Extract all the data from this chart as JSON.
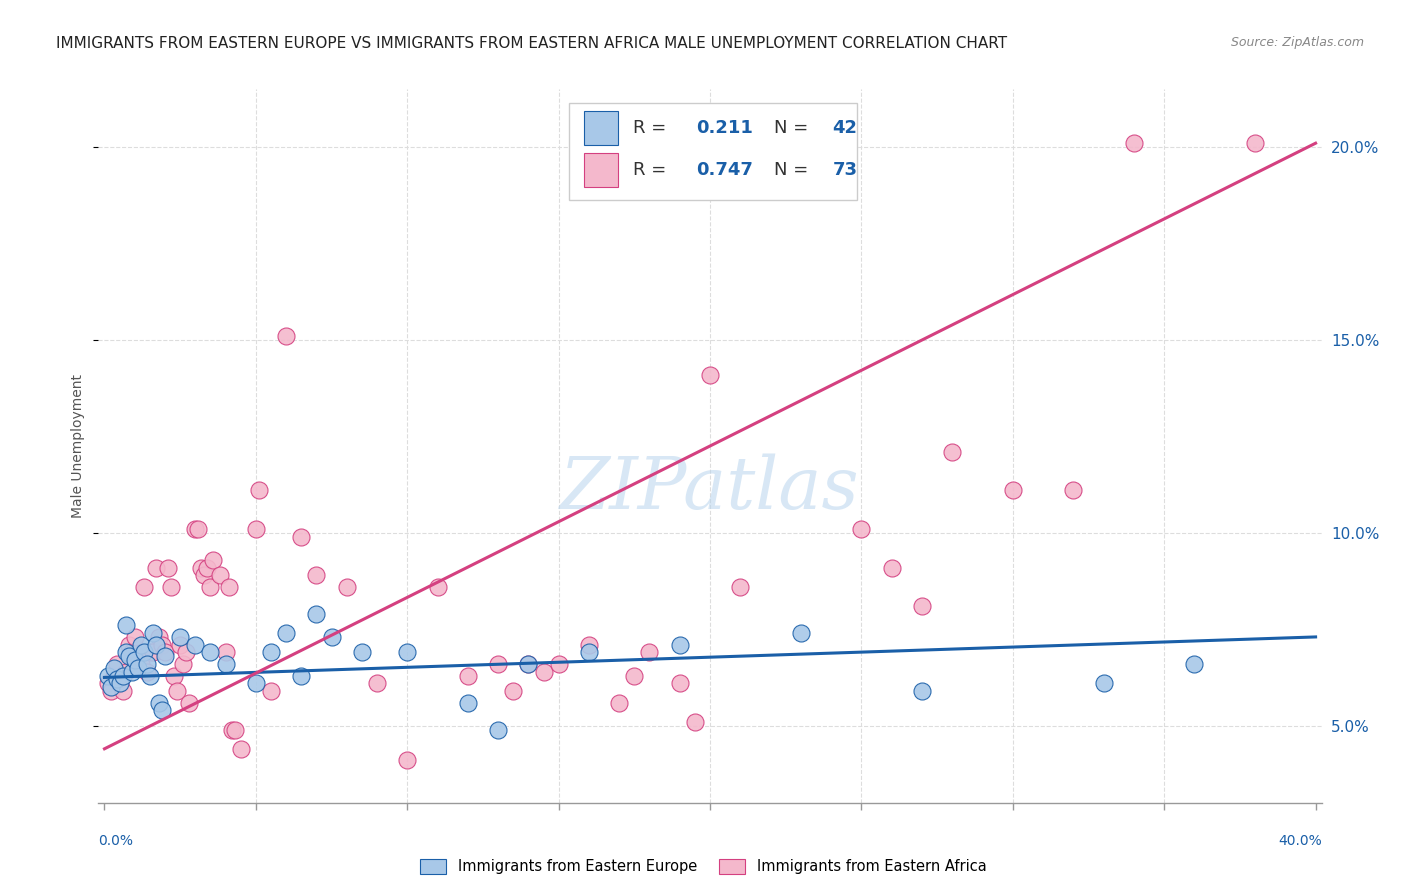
{
  "title": "IMMIGRANTS FROM EASTERN EUROPE VS IMMIGRANTS FROM EASTERN AFRICA MALE UNEMPLOYMENT CORRELATION CHART",
  "source": "Source: ZipAtlas.com",
  "ylabel": "Male Unemployment",
  "ylabel_right_ticks": [
    "5.0%",
    "10.0%",
    "15.0%",
    "20.0%"
  ],
  "ylabel_right_vals": [
    0.05,
    0.1,
    0.15,
    0.2
  ],
  "watermark": "ZIPatlas",
  "legend_blue_r": "0.211",
  "legend_blue_n": "42",
  "legend_pink_r": "0.747",
  "legend_pink_n": "73",
  "blue_color": "#a8c8e8",
  "pink_color": "#f4b8cc",
  "blue_line_color": "#1a5fa8",
  "pink_line_color": "#d44080",
  "blue_scatter": [
    [
      0.001,
      0.063
    ],
    [
      0.002,
      0.06
    ],
    [
      0.003,
      0.065
    ],
    [
      0.004,
      0.062
    ],
    [
      0.005,
      0.061
    ],
    [
      0.006,
      0.063
    ],
    [
      0.007,
      0.069
    ],
    [
      0.007,
      0.076
    ],
    [
      0.008,
      0.068
    ],
    [
      0.009,
      0.064
    ],
    [
      0.01,
      0.067
    ],
    [
      0.011,
      0.065
    ],
    [
      0.012,
      0.071
    ],
    [
      0.013,
      0.069
    ],
    [
      0.014,
      0.066
    ],
    [
      0.015,
      0.063
    ],
    [
      0.016,
      0.074
    ],
    [
      0.017,
      0.071
    ],
    [
      0.018,
      0.056
    ],
    [
      0.019,
      0.054
    ],
    [
      0.02,
      0.068
    ],
    [
      0.025,
      0.073
    ],
    [
      0.03,
      0.071
    ],
    [
      0.035,
      0.069
    ],
    [
      0.04,
      0.066
    ],
    [
      0.05,
      0.061
    ],
    [
      0.055,
      0.069
    ],
    [
      0.06,
      0.074
    ],
    [
      0.065,
      0.063
    ],
    [
      0.07,
      0.079
    ],
    [
      0.075,
      0.073
    ],
    [
      0.085,
      0.069
    ],
    [
      0.1,
      0.069
    ],
    [
      0.12,
      0.056
    ],
    [
      0.13,
      0.049
    ],
    [
      0.14,
      0.066
    ],
    [
      0.16,
      0.069
    ],
    [
      0.19,
      0.071
    ],
    [
      0.23,
      0.074
    ],
    [
      0.27,
      0.059
    ],
    [
      0.33,
      0.061
    ],
    [
      0.36,
      0.066
    ]
  ],
  "pink_scatter": [
    [
      0.001,
      0.061
    ],
    [
      0.002,
      0.059
    ],
    [
      0.003,
      0.063
    ],
    [
      0.004,
      0.066
    ],
    [
      0.005,
      0.061
    ],
    [
      0.006,
      0.059
    ],
    [
      0.007,
      0.064
    ],
    [
      0.008,
      0.071
    ],
    [
      0.009,
      0.069
    ],
    [
      0.01,
      0.073
    ],
    [
      0.011,
      0.068
    ],
    [
      0.012,
      0.066
    ],
    [
      0.013,
      0.086
    ],
    [
      0.014,
      0.064
    ],
    [
      0.015,
      0.069
    ],
    [
      0.016,
      0.069
    ],
    [
      0.017,
      0.091
    ],
    [
      0.018,
      0.073
    ],
    [
      0.019,
      0.071
    ],
    [
      0.02,
      0.069
    ],
    [
      0.021,
      0.091
    ],
    [
      0.022,
      0.086
    ],
    [
      0.023,
      0.063
    ],
    [
      0.024,
      0.059
    ],
    [
      0.025,
      0.071
    ],
    [
      0.026,
      0.066
    ],
    [
      0.027,
      0.069
    ],
    [
      0.028,
      0.056
    ],
    [
      0.03,
      0.101
    ],
    [
      0.031,
      0.101
    ],
    [
      0.032,
      0.091
    ],
    [
      0.033,
      0.089
    ],
    [
      0.034,
      0.091
    ],
    [
      0.035,
      0.086
    ],
    [
      0.036,
      0.093
    ],
    [
      0.038,
      0.089
    ],
    [
      0.04,
      0.069
    ],
    [
      0.041,
      0.086
    ],
    [
      0.042,
      0.049
    ],
    [
      0.043,
      0.049
    ],
    [
      0.045,
      0.044
    ],
    [
      0.05,
      0.101
    ],
    [
      0.051,
      0.111
    ],
    [
      0.055,
      0.059
    ],
    [
      0.06,
      0.151
    ],
    [
      0.065,
      0.099
    ],
    [
      0.07,
      0.089
    ],
    [
      0.08,
      0.086
    ],
    [
      0.09,
      0.061
    ],
    [
      0.1,
      0.041
    ],
    [
      0.11,
      0.086
    ],
    [
      0.12,
      0.063
    ],
    [
      0.13,
      0.066
    ],
    [
      0.135,
      0.059
    ],
    [
      0.14,
      0.066
    ],
    [
      0.145,
      0.064
    ],
    [
      0.15,
      0.066
    ],
    [
      0.16,
      0.071
    ],
    [
      0.17,
      0.056
    ],
    [
      0.175,
      0.063
    ],
    [
      0.18,
      0.069
    ],
    [
      0.19,
      0.061
    ],
    [
      0.195,
      0.051
    ],
    [
      0.2,
      0.141
    ],
    [
      0.21,
      0.086
    ],
    [
      0.25,
      0.101
    ],
    [
      0.26,
      0.091
    ],
    [
      0.27,
      0.081
    ],
    [
      0.28,
      0.121
    ],
    [
      0.3,
      0.111
    ],
    [
      0.32,
      0.111
    ],
    [
      0.34,
      0.201
    ],
    [
      0.38,
      0.201
    ]
  ],
  "blue_line_x": [
    0.0,
    0.4
  ],
  "blue_line_y": [
    0.0625,
    0.073
  ],
  "pink_line_x": [
    0.0,
    0.4
  ],
  "pink_line_y": [
    0.044,
    0.201
  ],
  "xlim": [
    -0.002,
    0.402
  ],
  "ylim": [
    0.03,
    0.215
  ],
  "x_grid_ticks": [
    0.05,
    0.1,
    0.15,
    0.2,
    0.25,
    0.3,
    0.35
  ],
  "title_fontsize": 11,
  "source_fontsize": 9,
  "axis_label_fontsize": 10,
  "legend_label_blue": "Immigrants from Eastern Europe",
  "legend_label_pink": "Immigrants from Eastern Africa"
}
